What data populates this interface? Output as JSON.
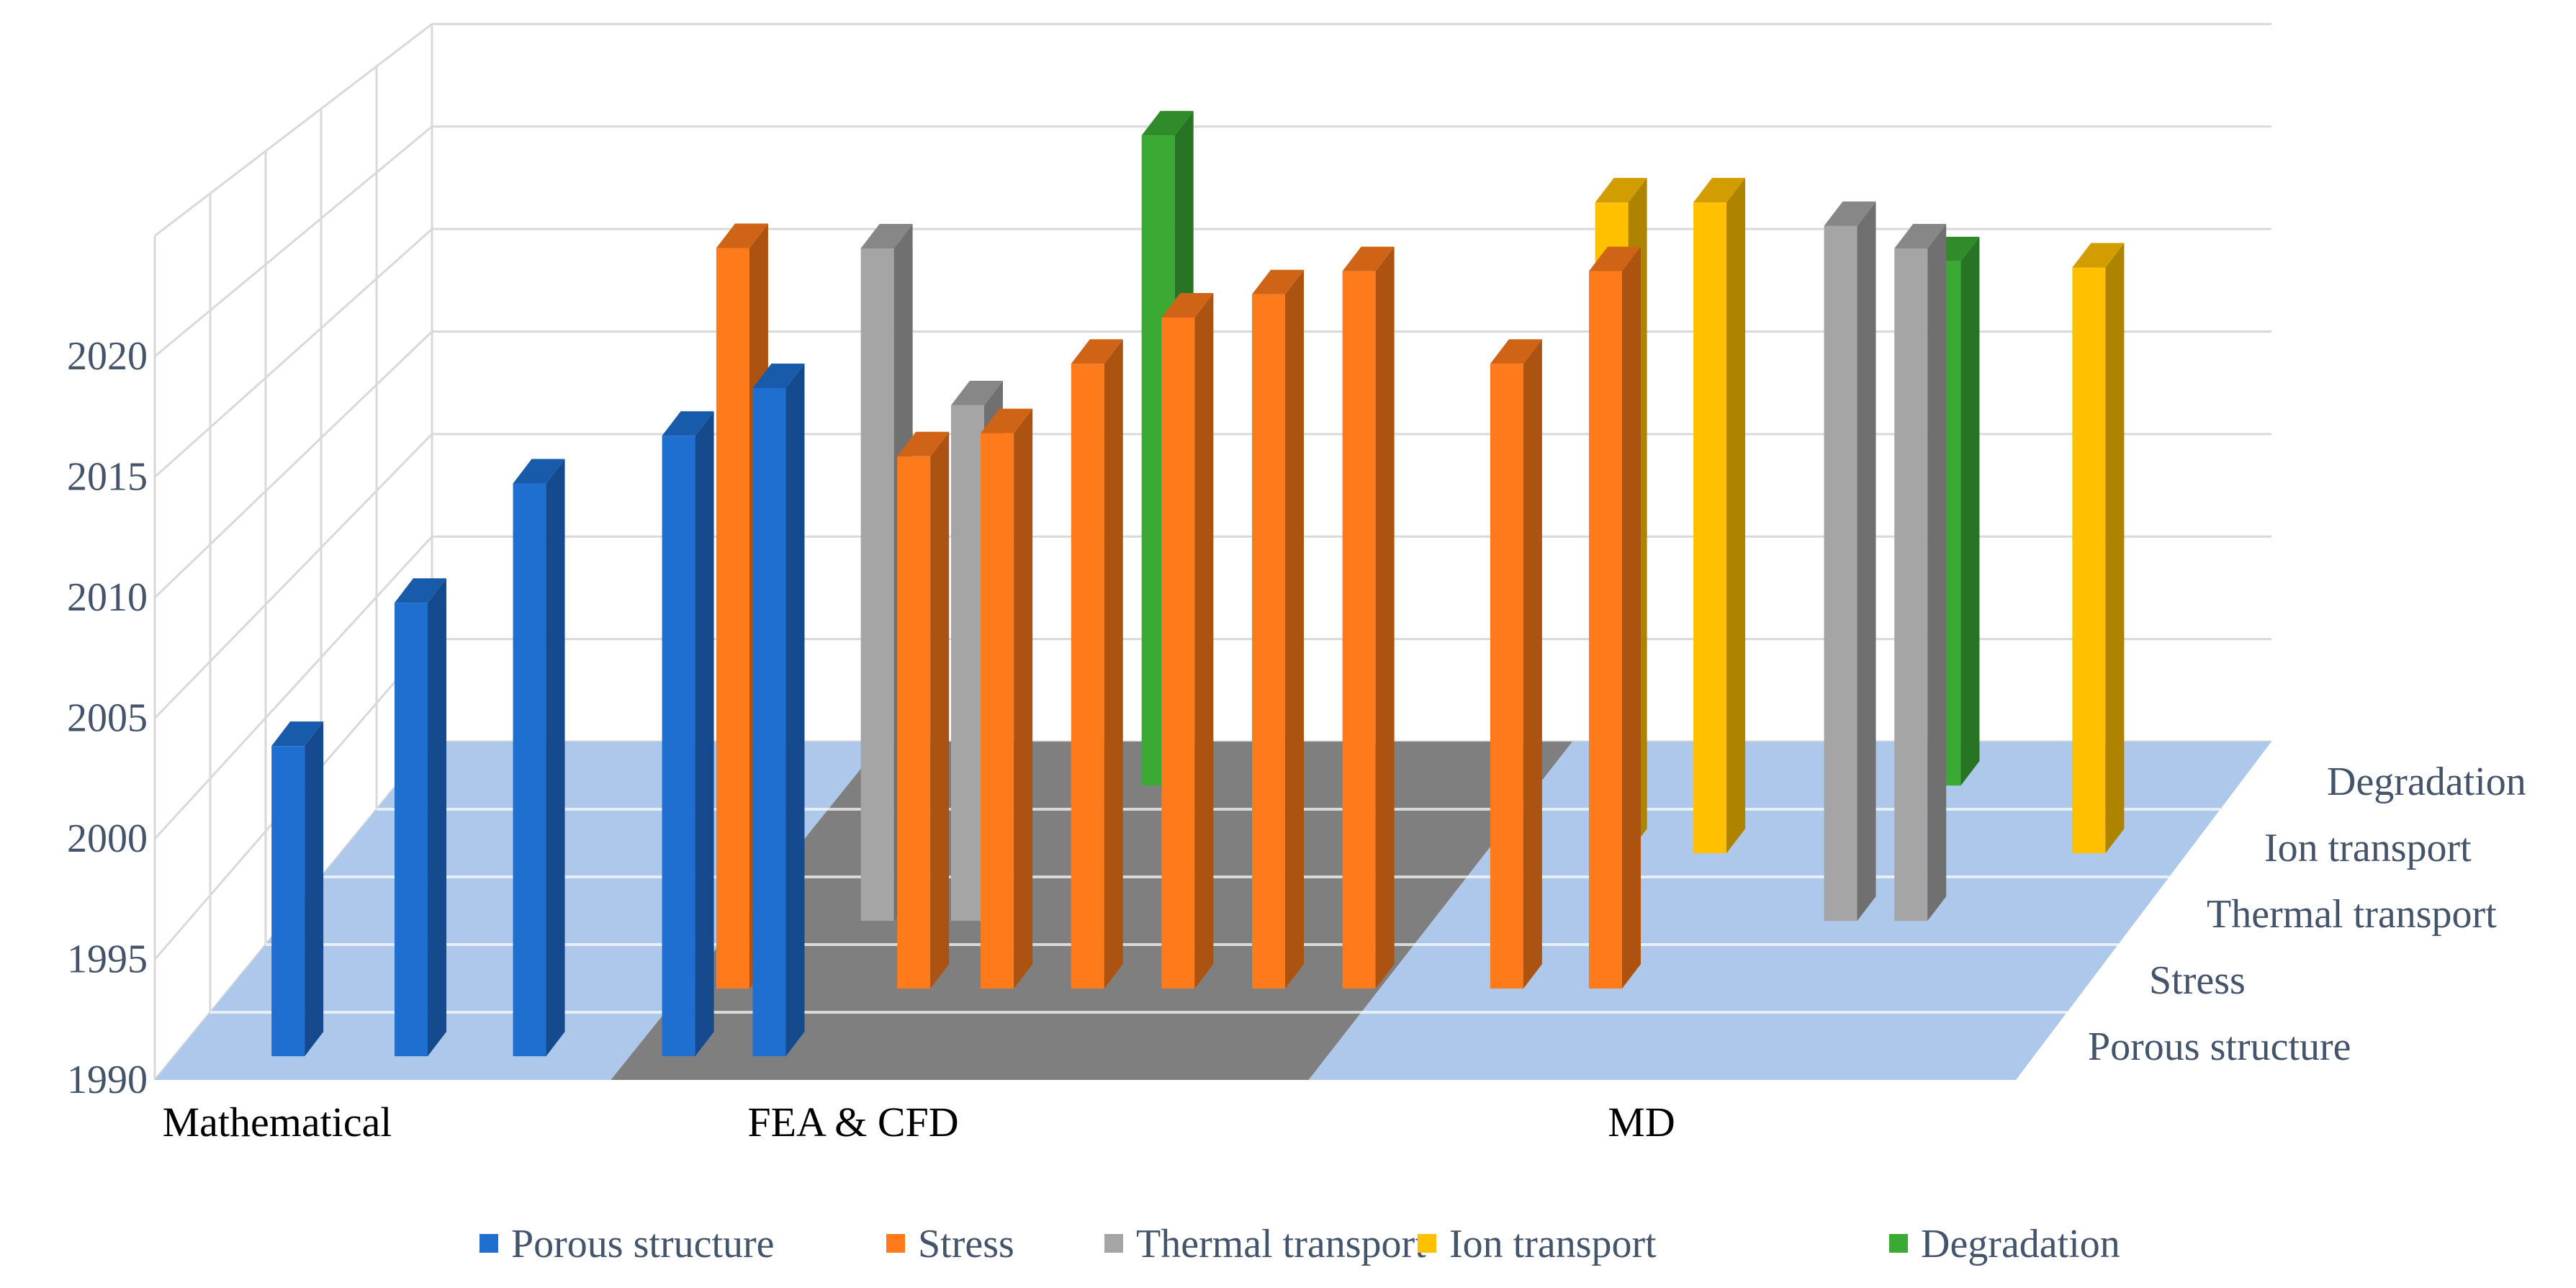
{
  "chart_data": {
    "type": "bar",
    "variant": "3d-column",
    "title": "",
    "xlabel": "",
    "ylabel": "",
    "ylim": [
      1990,
      2025
    ],
    "yticks": [
      "1990",
      "1995",
      "2000",
      "2005",
      "2010",
      "2015",
      "2020"
    ],
    "categories": [
      "Mathematical",
      "FEA & CFD",
      "MD"
    ],
    "depth_axis": [
      "Porous structure",
      "Stress",
      "Thermal transport",
      "Ion transport",
      "Degradation"
    ],
    "legend_position": "bottom",
    "series": [
      {
        "name": "Porous structure",
        "color": "#1f6fd1",
        "points": [
          {
            "category": "Mathematical",
            "value": 2003
          },
          {
            "category": "Mathematical",
            "value": 2009
          },
          {
            "category": "Mathematical",
            "value": 2014
          },
          {
            "category": "FEA & CFD",
            "value": 2016
          },
          {
            "category": "FEA & CFD",
            "value": 2018
          }
        ]
      },
      {
        "name": "Stress",
        "color": "#fe7a1b",
        "points": [
          {
            "category": "FEA & CFD",
            "value": 2013
          },
          {
            "category": "FEA & CFD",
            "value": 2014
          },
          {
            "category": "FEA & CFD",
            "value": 2017
          },
          {
            "category": "FEA & CFD",
            "value": 2019
          },
          {
            "category": "FEA & CFD",
            "value": 2020
          },
          {
            "category": "FEA & CFD",
            "value": 2021
          },
          {
            "category": "FEA & CFD",
            "value": 2022
          },
          {
            "category": "MD",
            "value": 2017
          },
          {
            "category": "MD",
            "value": 2021
          }
        ]
      },
      {
        "name": "Thermal transport",
        "color": "#a5a5a5",
        "points": [
          {
            "category": "FEA & CFD",
            "value": 2020
          },
          {
            "category": "FEA & CFD",
            "value": 2013
          },
          {
            "category": "MD",
            "value": 2021
          },
          {
            "category": "MD",
            "value": 2020
          }
        ]
      },
      {
        "name": "Ion transport",
        "color": "#ffc000",
        "points": [
          {
            "category": "MD",
            "value": 2017
          },
          {
            "category": "MD",
            "value": 2020
          },
          {
            "category": "MD",
            "value": 2020
          }
        ]
      },
      {
        "name": "Degradation",
        "color": "#3aaa35",
        "points": [
          {
            "category": "FEA & CFD",
            "value": 2021
          },
          {
            "category": "MD",
            "value": 2015
          }
        ]
      }
    ]
  }
}
